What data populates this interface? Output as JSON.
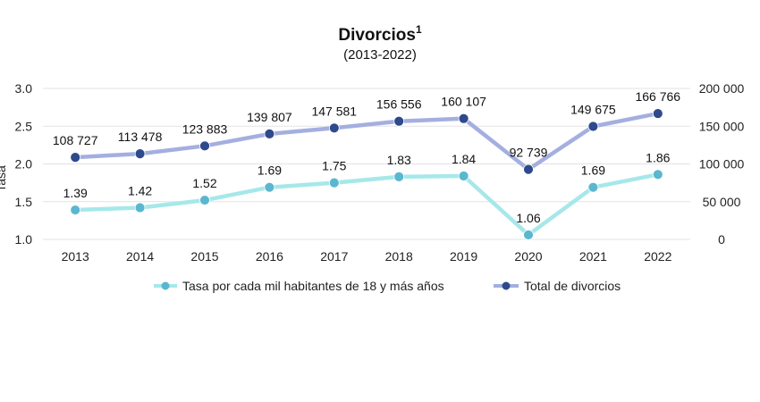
{
  "chart_data": {
    "type": "line",
    "title": "Divorcios",
    "title_superscript": "1",
    "subtitle": "(2013-2022)",
    "ylabel": "Tasa",
    "y2label": "",
    "categories": [
      "2013",
      "2014",
      "2015",
      "2016",
      "2017",
      "2018",
      "2019",
      "2020",
      "2021",
      "2022"
    ],
    "ylim": [
      1.0,
      3.0
    ],
    "y_ticks": [
      "1.0",
      "1.5",
      "2.0",
      "2.5",
      "3.0"
    ],
    "y_tick_values": [
      1.0,
      1.5,
      2.0,
      2.5,
      3.0
    ],
    "y2lim": [
      0,
      200000
    ],
    "y2_ticks": [
      "0",
      "50 000",
      "100 000",
      "150 000",
      "200 000"
    ],
    "y2_tick_values": [
      0,
      50000,
      100000,
      150000,
      200000
    ],
    "grid": true,
    "legend_position": "bottom",
    "series": [
      {
        "name": "Tasa por cada mil habitantes de 18 y más años",
        "axis": "left",
        "color": "#a6e8ea",
        "marker_color": "#5bb7cf",
        "values": [
          1.39,
          1.42,
          1.52,
          1.69,
          1.75,
          1.83,
          1.84,
          1.06,
          1.69,
          1.86
        ],
        "labels": [
          "1.39",
          "1.42",
          "1.52",
          "1.69",
          "1.75",
          "1.83",
          "1.84",
          "1.06",
          "1.69",
          "1.86"
        ]
      },
      {
        "name": "Total de divorcios",
        "axis": "right",
        "color": "#a4afe0",
        "marker_color": "#2e4a8c",
        "values": [
          108727,
          113478,
          123883,
          139807,
          147581,
          156556,
          160107,
          92739,
          149675,
          166766
        ],
        "labels": [
          "108 727",
          "113 478",
          "123 883",
          "139 807",
          "147 581",
          "156 556",
          "160 107",
          "92 739",
          "149 675",
          "166 766"
        ]
      }
    ]
  }
}
